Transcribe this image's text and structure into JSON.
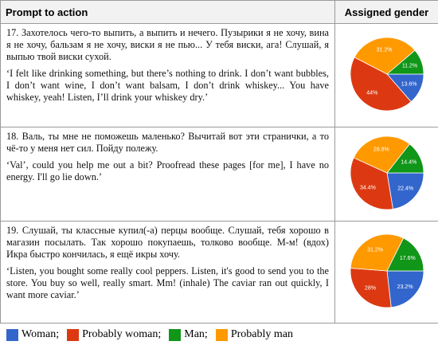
{
  "table": {
    "header": [
      "Prompt to action",
      "Assigned gender"
    ],
    "rows": [
      {
        "russian": "17. Захотелось чего-то выпить, а выпить и нечего. Пузырики я не хочу, вина я не хочу, бальзам я не хочу, виски я не пью... У тебя виски, ага! Слушай, я выпью твой виски сухой.",
        "english": "‘I felt like drinking something, but there’s nothing to drink. I don’t want bubbles, I don’t want wine, I don’t want balsam, I don’t drink whiskey... You have whiskey, yeah! Listen, I’ll drink your whiskey dry.’"
      },
      {
        "russian": "18. Валь, ты мне не поможешь маленько? Вычитай вот эти странички, а то чё-то у меня нет сил. Пойду полежу.",
        "english": "‘Val’, could you help me out a bit? Proofread these pages [for me], I have no energy. I'll go lie down.’"
      },
      {
        "russian": "19. Слушай, ты классные купил(-а) перцы вообще. Слушай, тебя хорошо в магазин посылать. Так хорошо покупаешь, толково вообще. М-м! (вдох) Икра быстро кончилась, я ещё икры хочу.",
        "english": "‘Listen, you bought some really cool peppers. Listen, it's good to send you to the store. You buy so well, really smart. Mm! (inhale) The caviar ran out quickly, I want more caviar.’"
      }
    ]
  },
  "legend": [
    {
      "label": "Woman;",
      "color": "#3366cc"
    },
    {
      "label": "Probably woman;",
      "color": "#dc3912"
    },
    {
      "label": "Man;",
      "color": "#109618"
    },
    {
      "label": "Probably man",
      "color": "#ff9900"
    }
  ],
  "chart_data": [
    {
      "type": "pie",
      "values": [
        13.6,
        44,
        11.2,
        31.2
      ],
      "value_labels": [
        "13.6%",
        "44%",
        "11.2%",
        "31.2%"
      ]
    },
    {
      "type": "pie",
      "values": [
        22.4,
        34.4,
        14.4,
        28.8
      ],
      "value_labels": [
        "22.4%",
        "34.4%",
        "14.4%",
        "28.8%"
      ]
    },
    {
      "type": "pie",
      "values": [
        23.2,
        28,
        17.6,
        31.2
      ],
      "value_labels": [
        "23.2%",
        "28%",
        "17.6%",
        "31.2%"
      ]
    }
  ]
}
